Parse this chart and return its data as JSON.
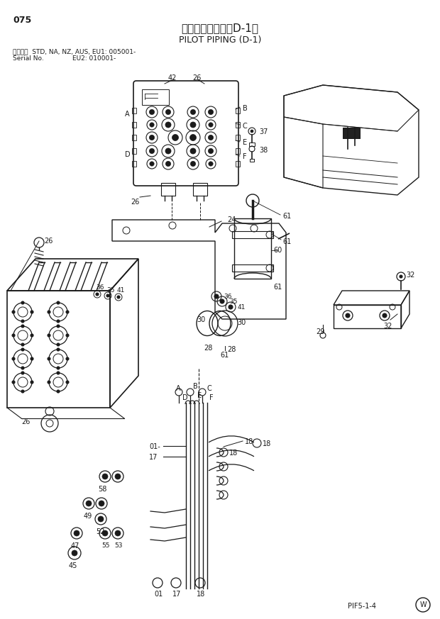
{
  "title_jp": "パイロット配管（D-1）",
  "title_en": "PILOT PIPING (D-1)",
  "page_num": "075",
  "serial_line1": "適用号機  STD, NA, NZ, AUS, EU1: 005001-",
  "serial_line2": "Serial No.              EU2: 010001-",
  "footer_code": "PIF5-1-4",
  "bg_color": "#ffffff",
  "lc": "#1a1a1a",
  "figsize": [
    6.2,
    8.73
  ],
  "dpi": 100
}
